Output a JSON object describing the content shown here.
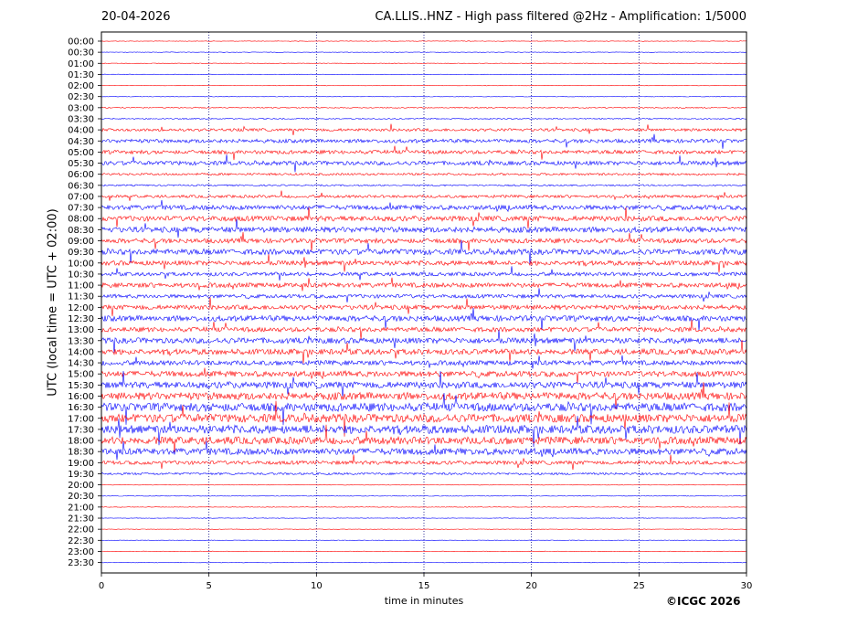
{
  "header": {
    "date": "20-04-2026",
    "title": "CA.LLIS..HNZ - High pass filtered @2Hz - Amplification: 1/5000"
  },
  "footer": {
    "copyright": "©ICGC 2026"
  },
  "chart_data": {
    "type": "line",
    "title": "CA.LLIS..HNZ - High pass filtered @2Hz - Amplification: 1/5000",
    "xlabel": "time in minutes",
    "ylabel": "UTC (local time = UTC + 02:00)",
    "xlim": [
      0,
      30
    ],
    "x_ticks": [
      "0",
      "5",
      "10",
      "15",
      "20",
      "25",
      "30"
    ],
    "grid": "vertical dotted lines every 5 minutes",
    "trace_colors": [
      "#ff0000",
      "#0000ff"
    ],
    "rows": [
      {
        "label": "00:00",
        "amp": 0.3
      },
      {
        "label": "00:30",
        "amp": 0.3
      },
      {
        "label": "01:00",
        "amp": 0.3
      },
      {
        "label": "01:30",
        "amp": 0.3
      },
      {
        "label": "02:00",
        "amp": 0.3
      },
      {
        "label": "02:30",
        "amp": 0.3
      },
      {
        "label": "03:00",
        "amp": 0.6
      },
      {
        "label": "03:30",
        "amp": 0.6
      },
      {
        "label": "04:00",
        "amp": 1.5
      },
      {
        "label": "04:30",
        "amp": 2.0
      },
      {
        "label": "05:00",
        "amp": 2.0
      },
      {
        "label": "05:30",
        "amp": 2.2
      },
      {
        "label": "06:00",
        "amp": 1.2
      },
      {
        "label": "06:30",
        "amp": 0.8
      },
      {
        "label": "07:00",
        "amp": 1.5
      },
      {
        "label": "07:30",
        "amp": 2.5
      },
      {
        "label": "08:00",
        "amp": 2.8
      },
      {
        "label": "08:30",
        "amp": 3.0
      },
      {
        "label": "09:00",
        "amp": 2.5
      },
      {
        "label": "09:30",
        "amp": 3.0
      },
      {
        "label": "10:00",
        "amp": 2.5
      },
      {
        "label": "10:30",
        "amp": 2.0
      },
      {
        "label": "11:00",
        "amp": 2.5
      },
      {
        "label": "11:30",
        "amp": 2.0
      },
      {
        "label": "12:00",
        "amp": 2.5
      },
      {
        "label": "12:30",
        "amp": 3.0
      },
      {
        "label": "13:00",
        "amp": 2.5
      },
      {
        "label": "13:30",
        "amp": 3.0
      },
      {
        "label": "14:00",
        "amp": 3.0
      },
      {
        "label": "14:30",
        "amp": 2.5
      },
      {
        "label": "15:00",
        "amp": 3.0
      },
      {
        "label": "15:30",
        "amp": 3.5
      },
      {
        "label": "16:00",
        "amp": 4.0
      },
      {
        "label": "16:30",
        "amp": 4.5
      },
      {
        "label": "17:00",
        "amp": 4.5
      },
      {
        "label": "17:30",
        "amp": 4.5
      },
      {
        "label": "18:00",
        "amp": 4.0
      },
      {
        "label": "18:30",
        "amp": 3.5
      },
      {
        "label": "19:00",
        "amp": 2.0
      },
      {
        "label": "19:30",
        "amp": 1.2
      },
      {
        "label": "20:00",
        "amp": 0.3
      },
      {
        "label": "20:30",
        "amp": 0.3
      },
      {
        "label": "21:00",
        "amp": 0.3
      },
      {
        "label": "21:30",
        "amp": 0.3
      },
      {
        "label": "22:00",
        "amp": 0.3
      },
      {
        "label": "22:30",
        "amp": 0.3
      },
      {
        "label": "23:00",
        "amp": 0.3
      },
      {
        "label": "23:30",
        "amp": 0.3
      }
    ]
  }
}
